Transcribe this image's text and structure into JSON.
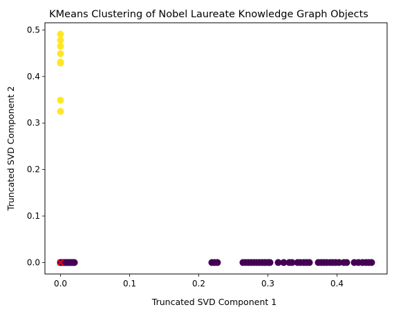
{
  "chart_data": {
    "type": "scatter",
    "title": "KMeans Clustering of Nobel Laureate Knowledge Graph Objects",
    "xlabel": "Truncated SVD Component 1",
    "ylabel": "Truncated SVD Component 2",
    "xlim": [
      -0.0225,
      0.4725
    ],
    "ylim": [
      -0.0246,
      0.5155
    ],
    "x_ticks": [
      0.0,
      0.1,
      0.2,
      0.3,
      0.4
    ],
    "x_tick_labels": [
      "0.0",
      "0.1",
      "0.2",
      "0.3",
      "0.4"
    ],
    "y_ticks": [
      0.0,
      0.1,
      0.2,
      0.3,
      0.4,
      0.5
    ],
    "y_tick_labels": [
      "0.0",
      "0.1",
      "0.2",
      "0.3",
      "0.4",
      "0.5"
    ],
    "grid": false,
    "legend": "none",
    "series": [
      {
        "color": "#440154",
        "marker": "circle",
        "points": [
          [
            0.0,
            0.0
          ],
          [
            0.002,
            0.0
          ],
          [
            0.004,
            0.0
          ],
          [
            0.006,
            0.0
          ],
          [
            0.008,
            0.0
          ],
          [
            0.01,
            0.0
          ],
          [
            0.012,
            0.0
          ],
          [
            0.014,
            0.0
          ],
          [
            0.016,
            0.0
          ],
          [
            0.018,
            0.0
          ],
          [
            0.02,
            0.0
          ],
          [
            0.219,
            0.0
          ],
          [
            0.223,
            0.0
          ],
          [
            0.227,
            0.0
          ],
          [
            0.264,
            0.0
          ],
          [
            0.268,
            0.0
          ],
          [
            0.272,
            0.0
          ],
          [
            0.276,
            0.0
          ],
          [
            0.28,
            0.0
          ],
          [
            0.284,
            0.0
          ],
          [
            0.288,
            0.0
          ],
          [
            0.292,
            0.0
          ],
          [
            0.296,
            0.0
          ],
          [
            0.3,
            0.0
          ],
          [
            0.303,
            0.0
          ],
          [
            0.315,
            0.0
          ],
          [
            0.323,
            0.0
          ],
          [
            0.331,
            0.0
          ],
          [
            0.335,
            0.0
          ],
          [
            0.343,
            0.0
          ],
          [
            0.347,
            0.0
          ],
          [
            0.352,
            0.0
          ],
          [
            0.356,
            0.0
          ],
          [
            0.36,
            0.0
          ],
          [
            0.373,
            0.0
          ],
          [
            0.377,
            0.0
          ],
          [
            0.381,
            0.0
          ],
          [
            0.385,
            0.0
          ],
          [
            0.39,
            0.0
          ],
          [
            0.394,
            0.0
          ],
          [
            0.398,
            0.0
          ],
          [
            0.403,
            0.0
          ],
          [
            0.41,
            0.0
          ],
          [
            0.414,
            0.0
          ],
          [
            0.425,
            0.0
          ],
          [
            0.431,
            0.0
          ],
          [
            0.437,
            0.0
          ],
          [
            0.442,
            0.0
          ],
          [
            0.446,
            0.0
          ],
          [
            0.45,
            0.0
          ]
        ]
      },
      {
        "color": "#fde725",
        "marker": "circle",
        "points": [
          [
            0.0,
            0.491
          ],
          [
            0.0,
            0.478
          ],
          [
            0.0,
            0.465
          ],
          [
            0.0,
            0.449
          ],
          [
            0.0,
            0.431
          ],
          [
            0.0,
            0.429
          ],
          [
            0.0,
            0.349
          ],
          [
            0.0,
            0.325
          ]
        ]
      },
      {
        "color": "#ff0000",
        "marker": "x",
        "points": [
          [
            0.0,
            0.0
          ]
        ]
      }
    ]
  }
}
